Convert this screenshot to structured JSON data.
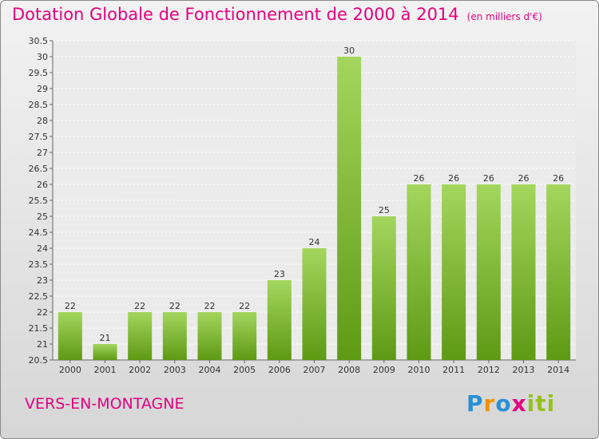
{
  "header": {
    "title": "Dotation Globale de Fonctionnement de 2000 à 2014",
    "subtitle": "(en milliers d'€)"
  },
  "footer": {
    "commune": "VERS-EN-MONTAGNE",
    "logo_text": "Proxiti"
  },
  "colors": {
    "title": "#e4007f",
    "bar_light": "#a4d65e",
    "bar_dark": "#5e9a14",
    "logo": [
      "#2a8fd6",
      "#f39200",
      "#e4007f",
      "#95c11f"
    ]
  },
  "chart_data": {
    "type": "bar",
    "categories": [
      "2000",
      "2001",
      "2002",
      "2003",
      "2004",
      "2005",
      "2006",
      "2007",
      "2008",
      "2009",
      "2010",
      "2011",
      "2012",
      "2013",
      "2014"
    ],
    "values": [
      22,
      21,
      22,
      22,
      22,
      22,
      23,
      24,
      30,
      25,
      26,
      26,
      26,
      26,
      26
    ],
    "ylim": [
      20.5,
      30.5
    ],
    "yticks": [
      "20.5",
      "21",
      "21.5",
      "22",
      "22.5",
      "23",
      "23.5",
      "24",
      "24.5",
      "25",
      "25.5",
      "26",
      "26.5",
      "27",
      "27.5",
      "28",
      "28.5",
      "29",
      "29.5",
      "30",
      "30.5"
    ],
    "grid": true
  }
}
